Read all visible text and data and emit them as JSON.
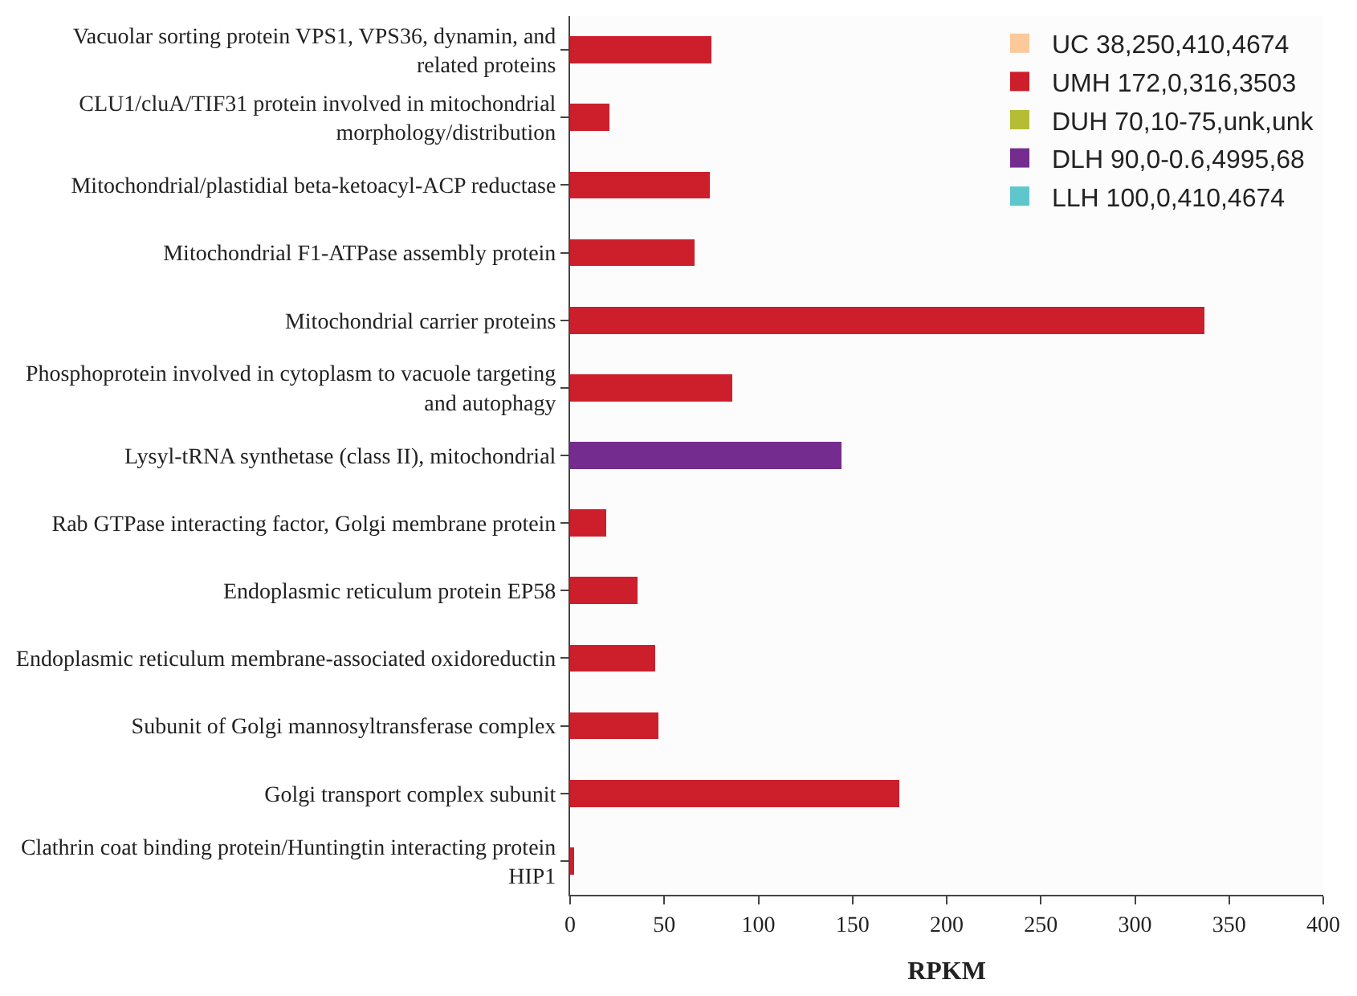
{
  "chart_data": {
    "type": "bar",
    "orientation": "horizontal",
    "stacked": true,
    "xlabel": "RPKM",
    "categories": [
      "Vacuolar sorting protein VPS1, VPS36, dynamin, and\nrelated proteins",
      "CLU1/cluA/TIF31 protein involved in mitochondrial\nmorphology/distribution",
      "Mitochondrial/plastidial beta-ketoacyl-ACP reductase",
      "Mitochondrial F1-ATPase assembly protein",
      "Mitochondrial carrier proteins",
      "Phosphoprotein involved in cytoplasm to vacuole targeting\nand autophagy",
      "Lysyl-tRNA synthetase (class II), mitochondrial",
      "Rab GTPase interacting factor, Golgi membrane protein",
      "Endoplasmic reticulum protein EP58",
      "Endoplasmic reticulum membrane-associated oxidoreductin",
      "Subunit of Golgi mannosyltransferase complex",
      "Golgi transport complex subunit",
      "Clathrin coat binding protein/Huntingtin interacting protein\nHIP1"
    ],
    "series": [
      {
        "name": "UC 38,250,410,4674",
        "color": "#fbc99a",
        "values": [
          null,
          null,
          null,
          null,
          null,
          null,
          null,
          null,
          null,
          null,
          null,
          null,
          null
        ]
      },
      {
        "name": "UMH 172,0,316,3503",
        "color": "#cc1f2b",
        "values": [
          75,
          21,
          74,
          66,
          337,
          86,
          null,
          19,
          36,
          45,
          47,
          175,
          2
        ]
      },
      {
        "name": "DUH 70,10-75,unk,unk",
        "color": "#b5bd35",
        "values": [
          null,
          null,
          null,
          null,
          null,
          null,
          null,
          null,
          null,
          null,
          null,
          null,
          null
        ]
      },
      {
        "name": "DLH 90,0-0.6,4995,68",
        "color": "#742c8e",
        "values": [
          null,
          null,
          null,
          null,
          null,
          null,
          144,
          null,
          null,
          null,
          null,
          null,
          null
        ]
      },
      {
        "name": "LLH 100,0,410,4674",
        "color": "#5ec7cb",
        "values": [
          null,
          null,
          null,
          null,
          null,
          null,
          null,
          null,
          null,
          null,
          null,
          null,
          null
        ]
      }
    ],
    "xlim": [
      0,
      400
    ],
    "xticks": [
      0,
      50,
      100,
      150,
      200,
      250,
      300,
      350,
      400
    ],
    "legend": "top right"
  }
}
